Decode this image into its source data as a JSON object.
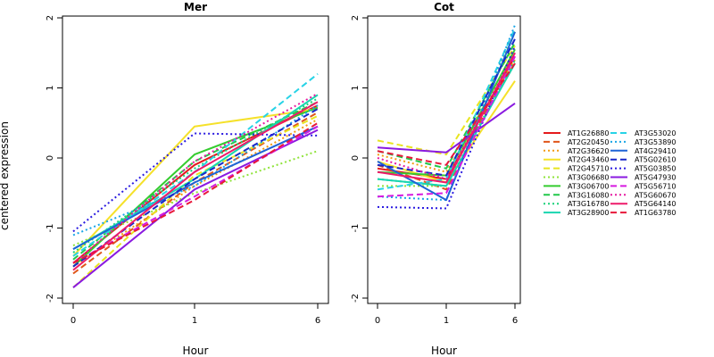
{
  "ylabel": "centered expression",
  "chart_data": [
    {
      "type": "line",
      "title": "Mer",
      "xlabel": "Hour",
      "ylabel": "centered expression",
      "x": [
        "0",
        "1",
        "6"
      ],
      "ylim": [
        -2,
        2
      ],
      "yticks": [
        "-2",
        "-1",
        "0",
        "1",
        "2"
      ],
      "grid": false,
      "series": [
        {
          "name": "AT1G26880",
          "color": "#e41a1c",
          "dash": "solid",
          "values": [
            -1.5,
            -0.1,
            0.75
          ]
        },
        {
          "name": "AT2G20450",
          "color": "#e0561a",
          "dash": "dashed",
          "values": [
            -1.65,
            -0.35,
            0.65
          ]
        },
        {
          "name": "AT2G36620",
          "color": "#f39c12",
          "dash": "dotted",
          "values": [
            -1.55,
            -0.4,
            0.55
          ]
        },
        {
          "name": "AT2G43460",
          "color": "#f5e12a",
          "dash": "solid",
          "values": [
            -1.4,
            0.45,
            0.7
          ]
        },
        {
          "name": "AT2G45710",
          "color": "#e8e51f",
          "dash": "dashed",
          "values": [
            -1.85,
            -0.25,
            0.6
          ]
        },
        {
          "name": "AT3G06680",
          "color": "#8fe33a",
          "dash": "dotted",
          "values": [
            -1.25,
            -0.5,
            0.1
          ]
        },
        {
          "name": "AT3G06700",
          "color": "#35cc2f",
          "dash": "solid",
          "values": [
            -1.55,
            0.05,
            0.72
          ]
        },
        {
          "name": "AT3G16080",
          "color": "#22c84a",
          "dash": "dashed",
          "values": [
            -1.45,
            -0.05,
            0.8
          ]
        },
        {
          "name": "AT3G16780",
          "color": "#1bd17a",
          "dash": "dotted",
          "values": [
            -1.35,
            -0.15,
            0.85
          ]
        },
        {
          "name": "AT3G28900",
          "color": "#18d6b0",
          "dash": "solid",
          "values": [
            -1.3,
            -0.3,
            0.9
          ]
        },
        {
          "name": "AT3G53020",
          "color": "#27d3e6",
          "dash": "dashed",
          "values": [
            -1.4,
            -0.2,
            1.2
          ]
        },
        {
          "name": "AT3G53890",
          "color": "#1aa6e6",
          "dash": "dotted",
          "values": [
            -1.1,
            -0.4,
            0.75
          ]
        },
        {
          "name": "AT4G29410",
          "color": "#1e63d6",
          "dash": "solid",
          "values": [
            -1.3,
            -0.35,
            0.45
          ]
        },
        {
          "name": "AT5G02610",
          "color": "#1a28c8",
          "dash": "dashed",
          "values": [
            -1.55,
            -0.3,
            0.7
          ]
        },
        {
          "name": "AT5G03850",
          "color": "#2a1ae0",
          "dash": "dotted",
          "values": [
            -1.05,
            0.35,
            0.32
          ]
        },
        {
          "name": "AT5G47930",
          "color": "#8a1ae0",
          "dash": "solid",
          "values": [
            -1.85,
            -0.45,
            0.4
          ]
        },
        {
          "name": "AT5G56710",
          "color": "#d61ae0",
          "dash": "dashed",
          "values": [
            -1.5,
            -0.55,
            0.45
          ]
        },
        {
          "name": "AT5G60670",
          "color": "#e61aa0",
          "dash": "dotted",
          "values": [
            -1.5,
            -0.05,
            0.92
          ]
        },
        {
          "name": "AT5G64140",
          "color": "#ee1a6a",
          "dash": "solid",
          "values": [
            -1.6,
            -0.2,
            0.8
          ]
        },
        {
          "name": "AT1G63780",
          "color": "#e8173a",
          "dash": "dashed",
          "values": [
            -1.5,
            -0.6,
            0.5
          ]
        }
      ]
    },
    {
      "type": "line",
      "title": "Cot",
      "xlabel": "Hour",
      "ylabel": "",
      "x": [
        "0",
        "1",
        "6"
      ],
      "ylim": [
        -2,
        2
      ],
      "yticks": [
        "-2",
        "-1",
        "0",
        "1",
        "2"
      ],
      "grid": false,
      "series": [
        {
          "name": "AT1G26880",
          "color": "#e41a1c",
          "dash": "solid",
          "values": [
            -0.15,
            -0.3,
            1.45
          ]
        },
        {
          "name": "AT2G20450",
          "color": "#e0561a",
          "dash": "dashed",
          "values": [
            -0.1,
            -0.45,
            1.5
          ]
        },
        {
          "name": "AT2G36620",
          "color": "#f39c12",
          "dash": "dotted",
          "values": [
            0.05,
            -0.2,
            1.4
          ]
        },
        {
          "name": "AT2G43460",
          "color": "#f5e12a",
          "dash": "solid",
          "values": [
            -0.05,
            -0.35,
            1.1
          ]
        },
        {
          "name": "AT2G45710",
          "color": "#e8e51f",
          "dash": "dashed",
          "values": [
            0.25,
            0.05,
            1.6
          ]
        },
        {
          "name": "AT3G06680",
          "color": "#8fe33a",
          "dash": "dotted",
          "values": [
            -0.4,
            -0.4,
            1.8
          ]
        },
        {
          "name": "AT3G06700",
          "color": "#35cc2f",
          "dash": "solid",
          "values": [
            -0.2,
            -0.25,
            1.55
          ]
        },
        {
          "name": "AT3G16080",
          "color": "#22c84a",
          "dash": "dashed",
          "values": [
            0.1,
            -0.15,
            1.65
          ]
        },
        {
          "name": "AT3G16780",
          "color": "#1bd17a",
          "dash": "dotted",
          "values": [
            -0.3,
            -0.4,
            1.4
          ]
        },
        {
          "name": "AT3G28900",
          "color": "#18d6b0",
          "dash": "solid",
          "values": [
            -0.3,
            -0.4,
            1.35
          ]
        },
        {
          "name": "AT3G53020",
          "color": "#27d3e6",
          "dash": "dashed",
          "values": [
            -0.45,
            -0.3,
            1.85
          ]
        },
        {
          "name": "AT3G53890",
          "color": "#1aa6e6",
          "dash": "dotted",
          "values": [
            -0.55,
            -0.6,
            1.9
          ]
        },
        {
          "name": "AT4G29410",
          "color": "#1e63d6",
          "dash": "solid",
          "values": [
            -0.05,
            -0.6,
            1.8
          ]
        },
        {
          "name": "AT5G02610",
          "color": "#1a28c8",
          "dash": "dashed",
          "values": [
            -0.1,
            -0.25,
            1.7
          ]
        },
        {
          "name": "AT5G03850",
          "color": "#2a1ae0",
          "dash": "dotted",
          "values": [
            -0.7,
            -0.72,
            1.6
          ]
        },
        {
          "name": "AT5G47930",
          "color": "#8a1ae0",
          "dash": "solid",
          "values": [
            0.15,
            0.08,
            0.78
          ]
        },
        {
          "name": "AT5G56710",
          "color": "#d61ae0",
          "dash": "dashed",
          "values": [
            -0.55,
            -0.5,
            1.45
          ]
        },
        {
          "name": "AT5G60670",
          "color": "#e61aa0",
          "dash": "dotted",
          "values": [
            0.0,
            -0.3,
            1.5
          ]
        },
        {
          "name": "AT5G64140",
          "color": "#ee1a6a",
          "dash": "solid",
          "values": [
            -0.2,
            -0.35,
            1.5
          ]
        },
        {
          "name": "AT1G63780",
          "color": "#e8173a",
          "dash": "dashed",
          "values": [
            0.1,
            -0.1,
            1.35
          ]
        }
      ]
    }
  ],
  "legend": {
    "placement": "right",
    "columns": 2
  }
}
